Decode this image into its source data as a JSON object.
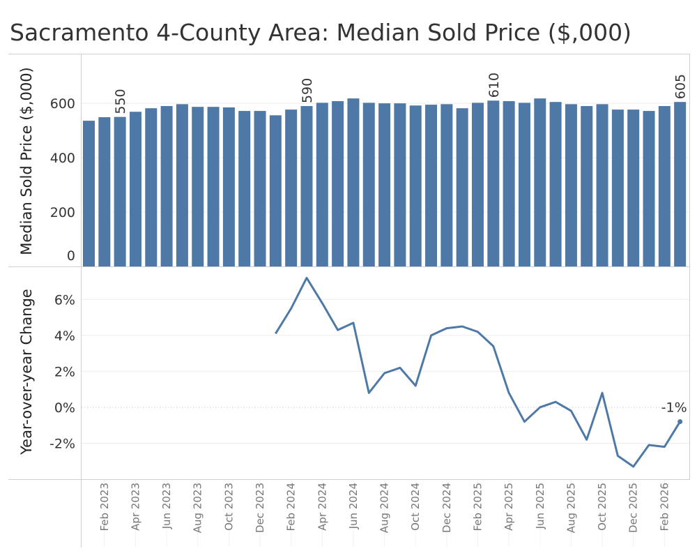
{
  "chart_data": [
    {
      "type": "bar",
      "title": "Sacramento 4-County Area: Median Sold Price ($,000)",
      "ylabel": "Median Sold Price ($,000)",
      "xlabel": "",
      "ylim": [
        0,
        780
      ],
      "yticks": [
        "0",
        "200",
        "400",
        "600"
      ],
      "ytick_values": [
        0,
        200,
        400,
        600
      ],
      "color": "#4e79a7",
      "grid": true,
      "categories": [
        "Jan 2023",
        "Feb 2023",
        "Mar 2023",
        "Apr 2023",
        "May 2023",
        "Jun 2023",
        "Jul 2023",
        "Aug 2023",
        "Sep 2023",
        "Oct 2023",
        "Nov 2023",
        "Dec 2023",
        "Jan 2024",
        "Feb 2024",
        "Mar 2024",
        "Apr 2024",
        "May 2024",
        "Jun 2024",
        "Jul 2024",
        "Aug 2024",
        "Sep 2024",
        "Oct 2024",
        "Nov 2024",
        "Dec 2024",
        "Jan 2025",
        "Feb 2025",
        "Mar 2025",
        "Apr 2025",
        "May 2025",
        "Jun 2025",
        "Jul 2025",
        "Aug 2025",
        "Sep 2025",
        "Oct 2025",
        "Nov 2025",
        "Dec 2025",
        "Jan 2026",
        "Feb 2026",
        "Mar 2026"
      ],
      "values": [
        536,
        549,
        550,
        569,
        582,
        590,
        597,
        587,
        587,
        585,
        572,
        572,
        556,
        577,
        590,
        602,
        608,
        618,
        602,
        600,
        600,
        592,
        595,
        597,
        582,
        602,
        610,
        608,
        602,
        618,
        605,
        597,
        590,
        597,
        577,
        577,
        572,
        590,
        605
      ],
      "data_labels": [
        {
          "index": 2,
          "text": "550"
        },
        {
          "index": 14,
          "text": "590"
        },
        {
          "index": 26,
          "text": "610"
        },
        {
          "index": 38,
          "text": "605"
        }
      ]
    },
    {
      "type": "line",
      "ylabel": "Year-over-year Change",
      "ylim": [
        -4,
        7.8
      ],
      "yticks": [
        "-2%",
        "0%",
        "2%",
        "4%",
        "6%"
      ],
      "ytick_values": [
        -2,
        0,
        2,
        4,
        6
      ],
      "color": "#4e79a7",
      "grid": true,
      "x_start_index": 12,
      "values": [
        4.1,
        5.5,
        7.2,
        5.8,
        4.3,
        4.7,
        0.8,
        1.9,
        2.2,
        1.2,
        4.0,
        4.4,
        4.5,
        4.2,
        3.4,
        0.8,
        -0.8,
        0.0,
        0.3,
        -0.2,
        -1.8,
        0.8,
        -2.7,
        -3.3,
        -2.1,
        -2.2,
        -0.8
      ],
      "end_label": "-1%"
    }
  ],
  "x_axis": {
    "tick_labels": [
      {
        "index": 1,
        "text": "Feb 2023"
      },
      {
        "index": 3,
        "text": "Apr 2023"
      },
      {
        "index": 5,
        "text": "Jun 2023"
      },
      {
        "index": 7,
        "text": "Aug 2023"
      },
      {
        "index": 9,
        "text": "Oct 2023"
      },
      {
        "index": 11,
        "text": "Dec 2023"
      },
      {
        "index": 13,
        "text": "Feb 2024"
      },
      {
        "index": 15,
        "text": "Apr 2024"
      },
      {
        "index": 17,
        "text": "Jun 2024"
      },
      {
        "index": 19,
        "text": "Aug 2024"
      },
      {
        "index": 21,
        "text": "Oct 2024"
      },
      {
        "index": 23,
        "text": "Dec 2024"
      },
      {
        "index": 25,
        "text": "Feb 2025"
      },
      {
        "index": 27,
        "text": "Apr 2025"
      },
      {
        "index": 29,
        "text": "Jun 2025"
      },
      {
        "index": 31,
        "text": "Aug 2025"
      },
      {
        "index": 33,
        "text": "Oct 2025"
      },
      {
        "index": 35,
        "text": "Dec 2025"
      },
      {
        "index": 37,
        "text": "Feb 2026"
      }
    ]
  }
}
